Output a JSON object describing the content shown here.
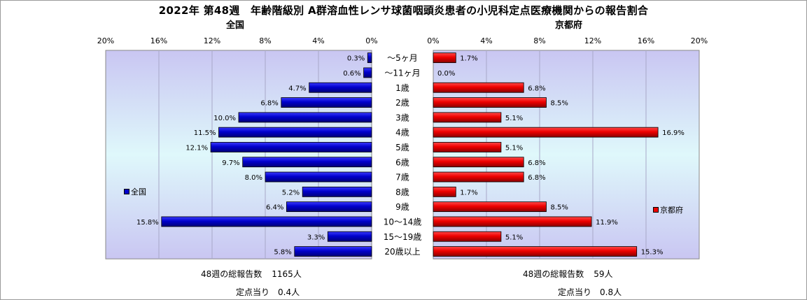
{
  "title": "2022年 第48週　年齢階級別 A群溶血性レンサ球菌咽頭炎患者の小児科定点医療機関からの報告割合",
  "left_subtitle": "全国",
  "right_subtitle": "京都府",
  "colors": {
    "national": "#0000cc",
    "kyoto": "#ee0000"
  },
  "chart_data": [
    {
      "type": "bar",
      "orientation": "horizontal-reversed",
      "series": [
        {
          "name": "全国",
          "values": [
            0.3,
            0.6,
            4.7,
            6.8,
            10.0,
            11.5,
            12.1,
            9.7,
            8.0,
            5.2,
            6.4,
            15.8,
            3.3,
            5.8
          ]
        }
      ],
      "categories": [
        "～5ヶ月",
        "～11ヶ月",
        "1歳",
        "2歳",
        "3歳",
        "4歳",
        "5歳",
        "6歳",
        "7歳",
        "8歳",
        "9歳",
        "10～14歳",
        "15～19歳",
        "20歳以上"
      ],
      "data_labels": [
        "0.3%",
        "0.6%",
        "4.7%",
        "6.8%",
        "10.0%",
        "11.5%",
        "12.1%",
        "9.7%",
        "8.0%",
        "5.2%",
        "6.4%",
        "15.8%",
        "3.3%",
        "5.8%"
      ],
      "xlim": [
        0,
        20
      ],
      "xticks": [
        "20%",
        "16%",
        "12%",
        "8%",
        "4%",
        "0%"
      ],
      "legend": "left"
    },
    {
      "type": "bar",
      "orientation": "horizontal",
      "series": [
        {
          "name": "京都府",
          "values": [
            1.7,
            0.0,
            6.8,
            8.5,
            5.1,
            16.9,
            5.1,
            6.8,
            6.8,
            1.7,
            8.5,
            11.9,
            5.1,
            15.3
          ]
        }
      ],
      "categories": [
        "～5ヶ月",
        "～11ヶ月",
        "1歳",
        "2歳",
        "3歳",
        "4歳",
        "5歳",
        "6歳",
        "7歳",
        "8歳",
        "9歳",
        "10～14歳",
        "15～19歳",
        "20歳以上"
      ],
      "data_labels": [
        "1.7%",
        "0.0%",
        "6.8%",
        "8.5%",
        "5.1%",
        "16.9%",
        "5.1%",
        "6.8%",
        "6.8%",
        "1.7%",
        "8.5%",
        "11.9%",
        "5.1%",
        "15.3%"
      ],
      "xlim": [
        0,
        20
      ],
      "xticks": [
        "0%",
        "4%",
        "8%",
        "12%",
        "16%",
        "20%"
      ],
      "legend": "right"
    }
  ],
  "footer": {
    "left_total_label": "48週の総報告数",
    "left_total_value": "1165人",
    "left_per_label": "定点当り",
    "left_per_value": "0.4人",
    "right_total_label": "48週の総報告数",
    "right_total_value": "59人",
    "right_per_label": "定点当り",
    "right_per_value": "0.8人"
  }
}
